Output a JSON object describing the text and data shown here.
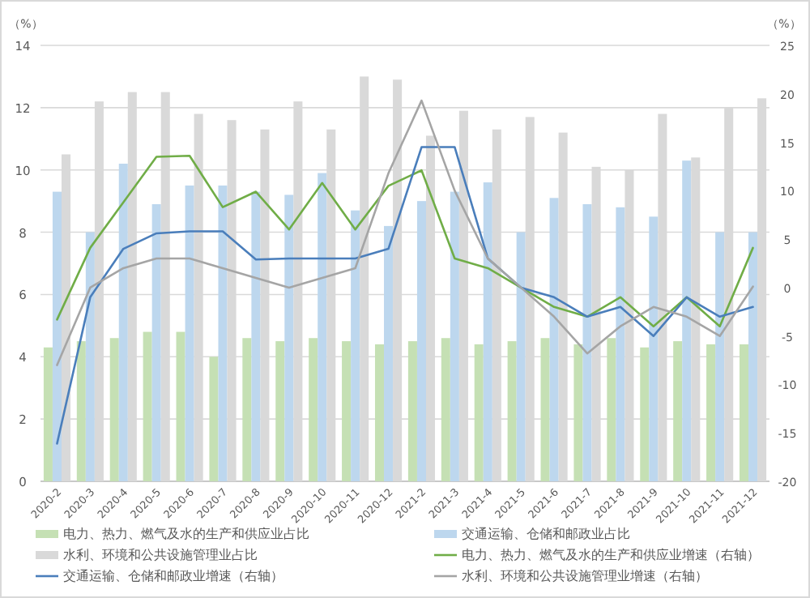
{
  "chart_data": {
    "type": "bar",
    "ylabel": "（%）",
    "y2label": "（%）",
    "categories": [
      "2020-2",
      "2020-3",
      "2020-4",
      "2020-5",
      "2020-6",
      "2020-7",
      "2020-8",
      "2020-9",
      "2020-10",
      "2020-11",
      "2020-12",
      "2021-2",
      "2021-3",
      "2021-4",
      "2021-5",
      "2021-6",
      "2021-7",
      "2021-8",
      "2021-9",
      "2021-10",
      "2021-11",
      "2021-12"
    ],
    "series": [
      {
        "name": "电力、热力、燃气及水的生产和供应业占比",
        "color": "#c5e0b4",
        "values": [
          4.3,
          4.5,
          4.6,
          4.8,
          4.8,
          4.0,
          4.6,
          4.5,
          4.6,
          4.5,
          4.4,
          4.5,
          4.6,
          4.4,
          4.5,
          4.6,
          4.4,
          4.6,
          4.3,
          4.5,
          4.4,
          4.4
        ]
      },
      {
        "name": "交通运输、仓储和邮政业占比",
        "color": "#bdd7ee",
        "values": [
          9.3,
          8.0,
          10.2,
          8.9,
          9.5,
          9.5,
          9.3,
          9.2,
          9.9,
          8.7,
          8.2,
          9.0,
          9.3,
          9.6,
          8.0,
          9.1,
          8.9,
          8.8,
          8.5,
          10.3,
          8.0,
          8.0
        ]
      },
      {
        "name": "水利、环境和公共设施管理业占比",
        "color": "#d9d9d9",
        "values": [
          10.5,
          12.2,
          12.5,
          12.5,
          11.8,
          11.6,
          11.3,
          12.2,
          11.3,
          13.0,
          12.9,
          11.1,
          11.9,
          11.3,
          11.7,
          11.2,
          10.1,
          10.0,
          11.8,
          10.4,
          12.0,
          12.3
        ]
      },
      {
        "type": "line",
        "axis": "y2",
        "name": "电力、热力、燃气及水的生产和供应业增速（右轴）",
        "color": "#70ad47",
        "values": [
          -3.3,
          4.1,
          8.8,
          13.5,
          13.6,
          8.3,
          9.9,
          6.0,
          10.8,
          6.0,
          10.5,
          12.1,
          3.0,
          2.0,
          0.0,
          -2.0,
          -3.0,
          -1.0,
          -4.0,
          -1.0,
          -4.0,
          4.1
        ]
      },
      {
        "type": "line",
        "axis": "y2",
        "name": "交通运输、仓储和邮政业增速（右轴）",
        "color": "#4a7ebb",
        "values": [
          -16.1,
          -1.0,
          4.0,
          5.6,
          5.8,
          5.8,
          2.9,
          3.0,
          3.0,
          3.0,
          4.0,
          14.5,
          14.5,
          3.0,
          0.0,
          -1.0,
          -3.0,
          -2.0,
          -5.0,
          -1.0,
          -3.0,
          -2.0
        ]
      },
      {
        "type": "line",
        "axis": "y2",
        "name": "水利、环境和公共设施管理业增速（右轴）",
        "color": "#a5a5a5",
        "values": [
          -8.0,
          0.0,
          2.0,
          3.0,
          3.0,
          2.0,
          1.0,
          0.0,
          1.0,
          2.0,
          11.8,
          19.3,
          10.0,
          3.0,
          0.0,
          -3.0,
          -6.8,
          -4.0,
          -2.0,
          -3.0,
          -5.0,
          0.1
        ]
      }
    ],
    "ylim": [
      0,
      14
    ],
    "yticks": [
      0,
      2,
      4,
      6,
      8,
      10,
      12,
      14
    ],
    "y2lim": [
      -20,
      25
    ],
    "y2ticks": [
      -20,
      -15,
      -10,
      -5,
      0,
      5,
      10,
      15,
      20,
      25
    ],
    "grid": "y",
    "legend": "bottom"
  }
}
